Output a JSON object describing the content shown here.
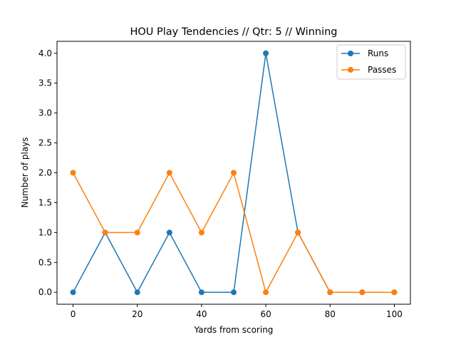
{
  "chart_data": {
    "type": "line",
    "title": "HOU Play Tendencies // Qtr: 5 // Winning",
    "xlabel": "Yards from scoring",
    "ylabel": "Number of plays",
    "x": [
      0,
      10,
      20,
      30,
      40,
      50,
      60,
      70,
      80,
      90,
      100
    ],
    "series": [
      {
        "name": "Runs",
        "color": "#1f77b4",
        "values": [
          0,
          1,
          0,
          1,
          0,
          0,
          4,
          1,
          0,
          0,
          0
        ]
      },
      {
        "name": "Passes",
        "color": "#ff7f0e",
        "values": [
          2,
          1,
          1,
          2,
          1,
          2,
          0,
          1,
          0,
          0,
          0
        ]
      }
    ],
    "xlim": [
      -5,
      105
    ],
    "ylim": [
      -0.2,
      4.2
    ],
    "xticks": [
      0,
      20,
      40,
      60,
      80,
      100
    ],
    "xtick_labels": [
      "0",
      "20",
      "40",
      "60",
      "80",
      "100"
    ],
    "yticks": [
      0,
      0.5,
      1,
      1.5,
      2,
      2.5,
      3,
      3.5,
      4
    ],
    "ytick_labels": [
      "0.0",
      "0.5",
      "1.0",
      "1.5",
      "2.0",
      "2.5",
      "3.0",
      "3.5",
      "4.0"
    ],
    "grid": false,
    "legend": "top-right",
    "marker": "circle"
  }
}
